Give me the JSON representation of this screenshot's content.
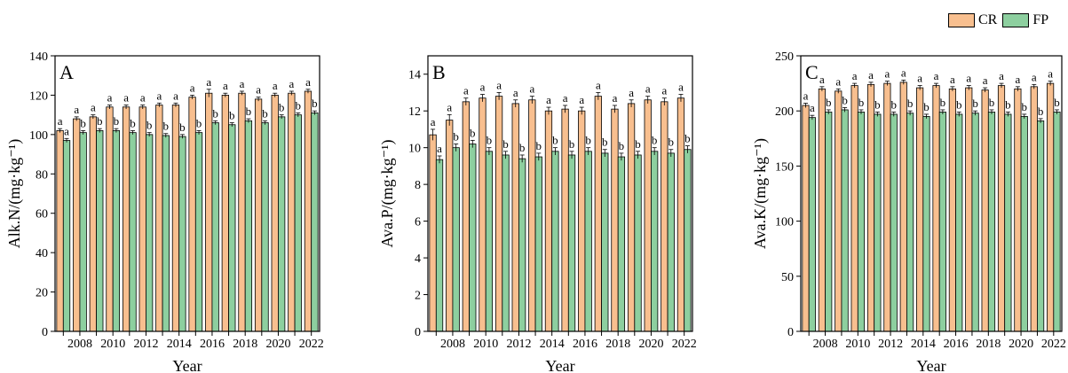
{
  "legend": {
    "cr_label": "CR",
    "fp_label": "FP"
  },
  "colors": {
    "cr": "#F8BF8F",
    "fp": "#8DCF9F",
    "axis": "#000000"
  },
  "chart_data": [
    {
      "type": "bar",
      "panel_letter": "A",
      "xlabel": "Year",
      "ylabel": "Alk.N/(mg·kg⁻¹)",
      "ylim": [
        0,
        140
      ],
      "yticks": [
        0,
        20,
        40,
        60,
        80,
        100,
        120,
        140
      ],
      "categories": [
        2007,
        2008,
        2009,
        2010,
        2011,
        2012,
        2013,
        2014,
        2015,
        2016,
        2017,
        2018,
        2019,
        2020,
        2021,
        2022
      ],
      "xtick_labels": [
        2008,
        2010,
        2012,
        2014,
        2016,
        2018,
        2020,
        2022
      ],
      "series": [
        {
          "name": "CR",
          "values": [
            102,
            108,
            109,
            114,
            114,
            114,
            115,
            115,
            119,
            121,
            120,
            121,
            118,
            120,
            121,
            122
          ],
          "errors": [
            1,
            1,
            1,
            1,
            1,
            1,
            1,
            1,
            1,
            2,
            1,
            1,
            1,
            1,
            1,
            1
          ],
          "letters": [
            "a",
            "a",
            "a",
            "a",
            "a",
            "a",
            "a",
            "a",
            "a",
            "a",
            "a",
            "a",
            "a",
            "a",
            "a",
            "a"
          ]
        },
        {
          "name": "FP",
          "values": [
            97,
            101,
            102,
            102,
            101,
            100,
            99.5,
            99,
            101,
            106,
            105,
            107,
            106,
            109,
            110,
            111
          ],
          "errors": [
            1,
            1,
            1,
            1,
            1,
            1,
            1,
            1,
            1,
            1,
            1,
            1,
            1,
            1,
            1,
            1
          ],
          "letters": [
            "a",
            "b",
            "b",
            "b",
            "b",
            "b",
            "b",
            "b",
            "b",
            "b",
            "b",
            "b",
            "b",
            "b",
            "b",
            "b"
          ]
        }
      ]
    },
    {
      "type": "bar",
      "panel_letter": "B",
      "xlabel": "Year",
      "ylabel": "Ava.P/(mg·kg⁻¹)",
      "ylim": [
        0,
        15
      ],
      "yticks": [
        0,
        2,
        4,
        6,
        8,
        10,
        12,
        14
      ],
      "categories": [
        2007,
        2008,
        2009,
        2010,
        2011,
        2012,
        2013,
        2014,
        2015,
        2016,
        2017,
        2018,
        2019,
        2020,
        2021,
        2022
      ],
      "xtick_labels": [
        2008,
        2010,
        2012,
        2014,
        2016,
        2018,
        2020,
        2022
      ],
      "series": [
        {
          "name": "CR",
          "values": [
            10.7,
            11.5,
            12.5,
            12.7,
            12.8,
            12.4,
            12.6,
            12.0,
            12.1,
            12.0,
            12.8,
            12.1,
            12.4,
            12.6,
            12.5,
            12.7
          ],
          "errors": [
            0.3,
            0.3,
            0.2,
            0.2,
            0.2,
            0.2,
            0.2,
            0.2,
            0.2,
            0.2,
            0.2,
            0.2,
            0.2,
            0.2,
            0.2,
            0.2
          ],
          "letters": [
            "a",
            "a",
            "a",
            "a",
            "a",
            "a",
            "a",
            "a",
            "a",
            "a",
            "a",
            "a",
            "a",
            "a",
            "a",
            "a"
          ]
        },
        {
          "name": "FP",
          "values": [
            9.35,
            10.0,
            10.2,
            9.8,
            9.6,
            9.4,
            9.5,
            9.8,
            9.6,
            9.8,
            9.7,
            9.5,
            9.6,
            9.8,
            9.7,
            9.9
          ],
          "errors": [
            0.2,
            0.2,
            0.2,
            0.2,
            0.2,
            0.2,
            0.2,
            0.2,
            0.2,
            0.2,
            0.2,
            0.2,
            0.2,
            0.2,
            0.2,
            0.2
          ],
          "letters": [
            "a",
            "b",
            "b",
            "b",
            "b",
            "b",
            "b",
            "b",
            "b",
            "b",
            "b",
            "b",
            "b",
            "b",
            "b",
            "b"
          ]
        }
      ]
    },
    {
      "type": "bar",
      "panel_letter": "C",
      "xlabel": "Year",
      "ylabel": "Ava.K/(mg·kg⁻¹)",
      "ylim": [
        0,
        250
      ],
      "yticks": [
        0,
        50,
        100,
        150,
        200,
        250
      ],
      "categories": [
        2007,
        2008,
        2009,
        2010,
        2011,
        2012,
        2013,
        2014,
        2015,
        2016,
        2017,
        2018,
        2019,
        2020,
        2021,
        2022
      ],
      "xtick_labels": [
        2008,
        2010,
        2012,
        2014,
        2016,
        2018,
        2020,
        2022
      ],
      "series": [
        {
          "name": "CR",
          "values": [
            205,
            220,
            218,
            223,
            224,
            225,
            226,
            221,
            223,
            220,
            221,
            219,
            223,
            220,
            222,
            225
          ],
          "errors": [
            2,
            2,
            2,
            2,
            2,
            2,
            2,
            2,
            2,
            2,
            2,
            2,
            2,
            2,
            2,
            2
          ],
          "letters": [
            "a",
            "a",
            "a",
            "a",
            "a",
            "a",
            "a",
            "a",
            "a",
            "a",
            "a",
            "a",
            "a",
            "a",
            "a",
            "a"
          ]
        },
        {
          "name": "FP",
          "values": [
            194,
            199,
            201,
            199,
            197,
            197,
            198,
            195,
            199,
            197,
            198,
            199,
            197,
            195,
            191,
            199
          ],
          "errors": [
            2,
            2,
            2,
            2,
            2,
            2,
            2,
            2,
            2,
            2,
            2,
            2,
            2,
            2,
            2,
            2
          ],
          "letters": [
            "a",
            "b",
            "b",
            "b",
            "b",
            "b",
            "b",
            "b",
            "b",
            "b",
            "b",
            "b",
            "b",
            "b",
            "b",
            "b"
          ]
        }
      ]
    }
  ]
}
